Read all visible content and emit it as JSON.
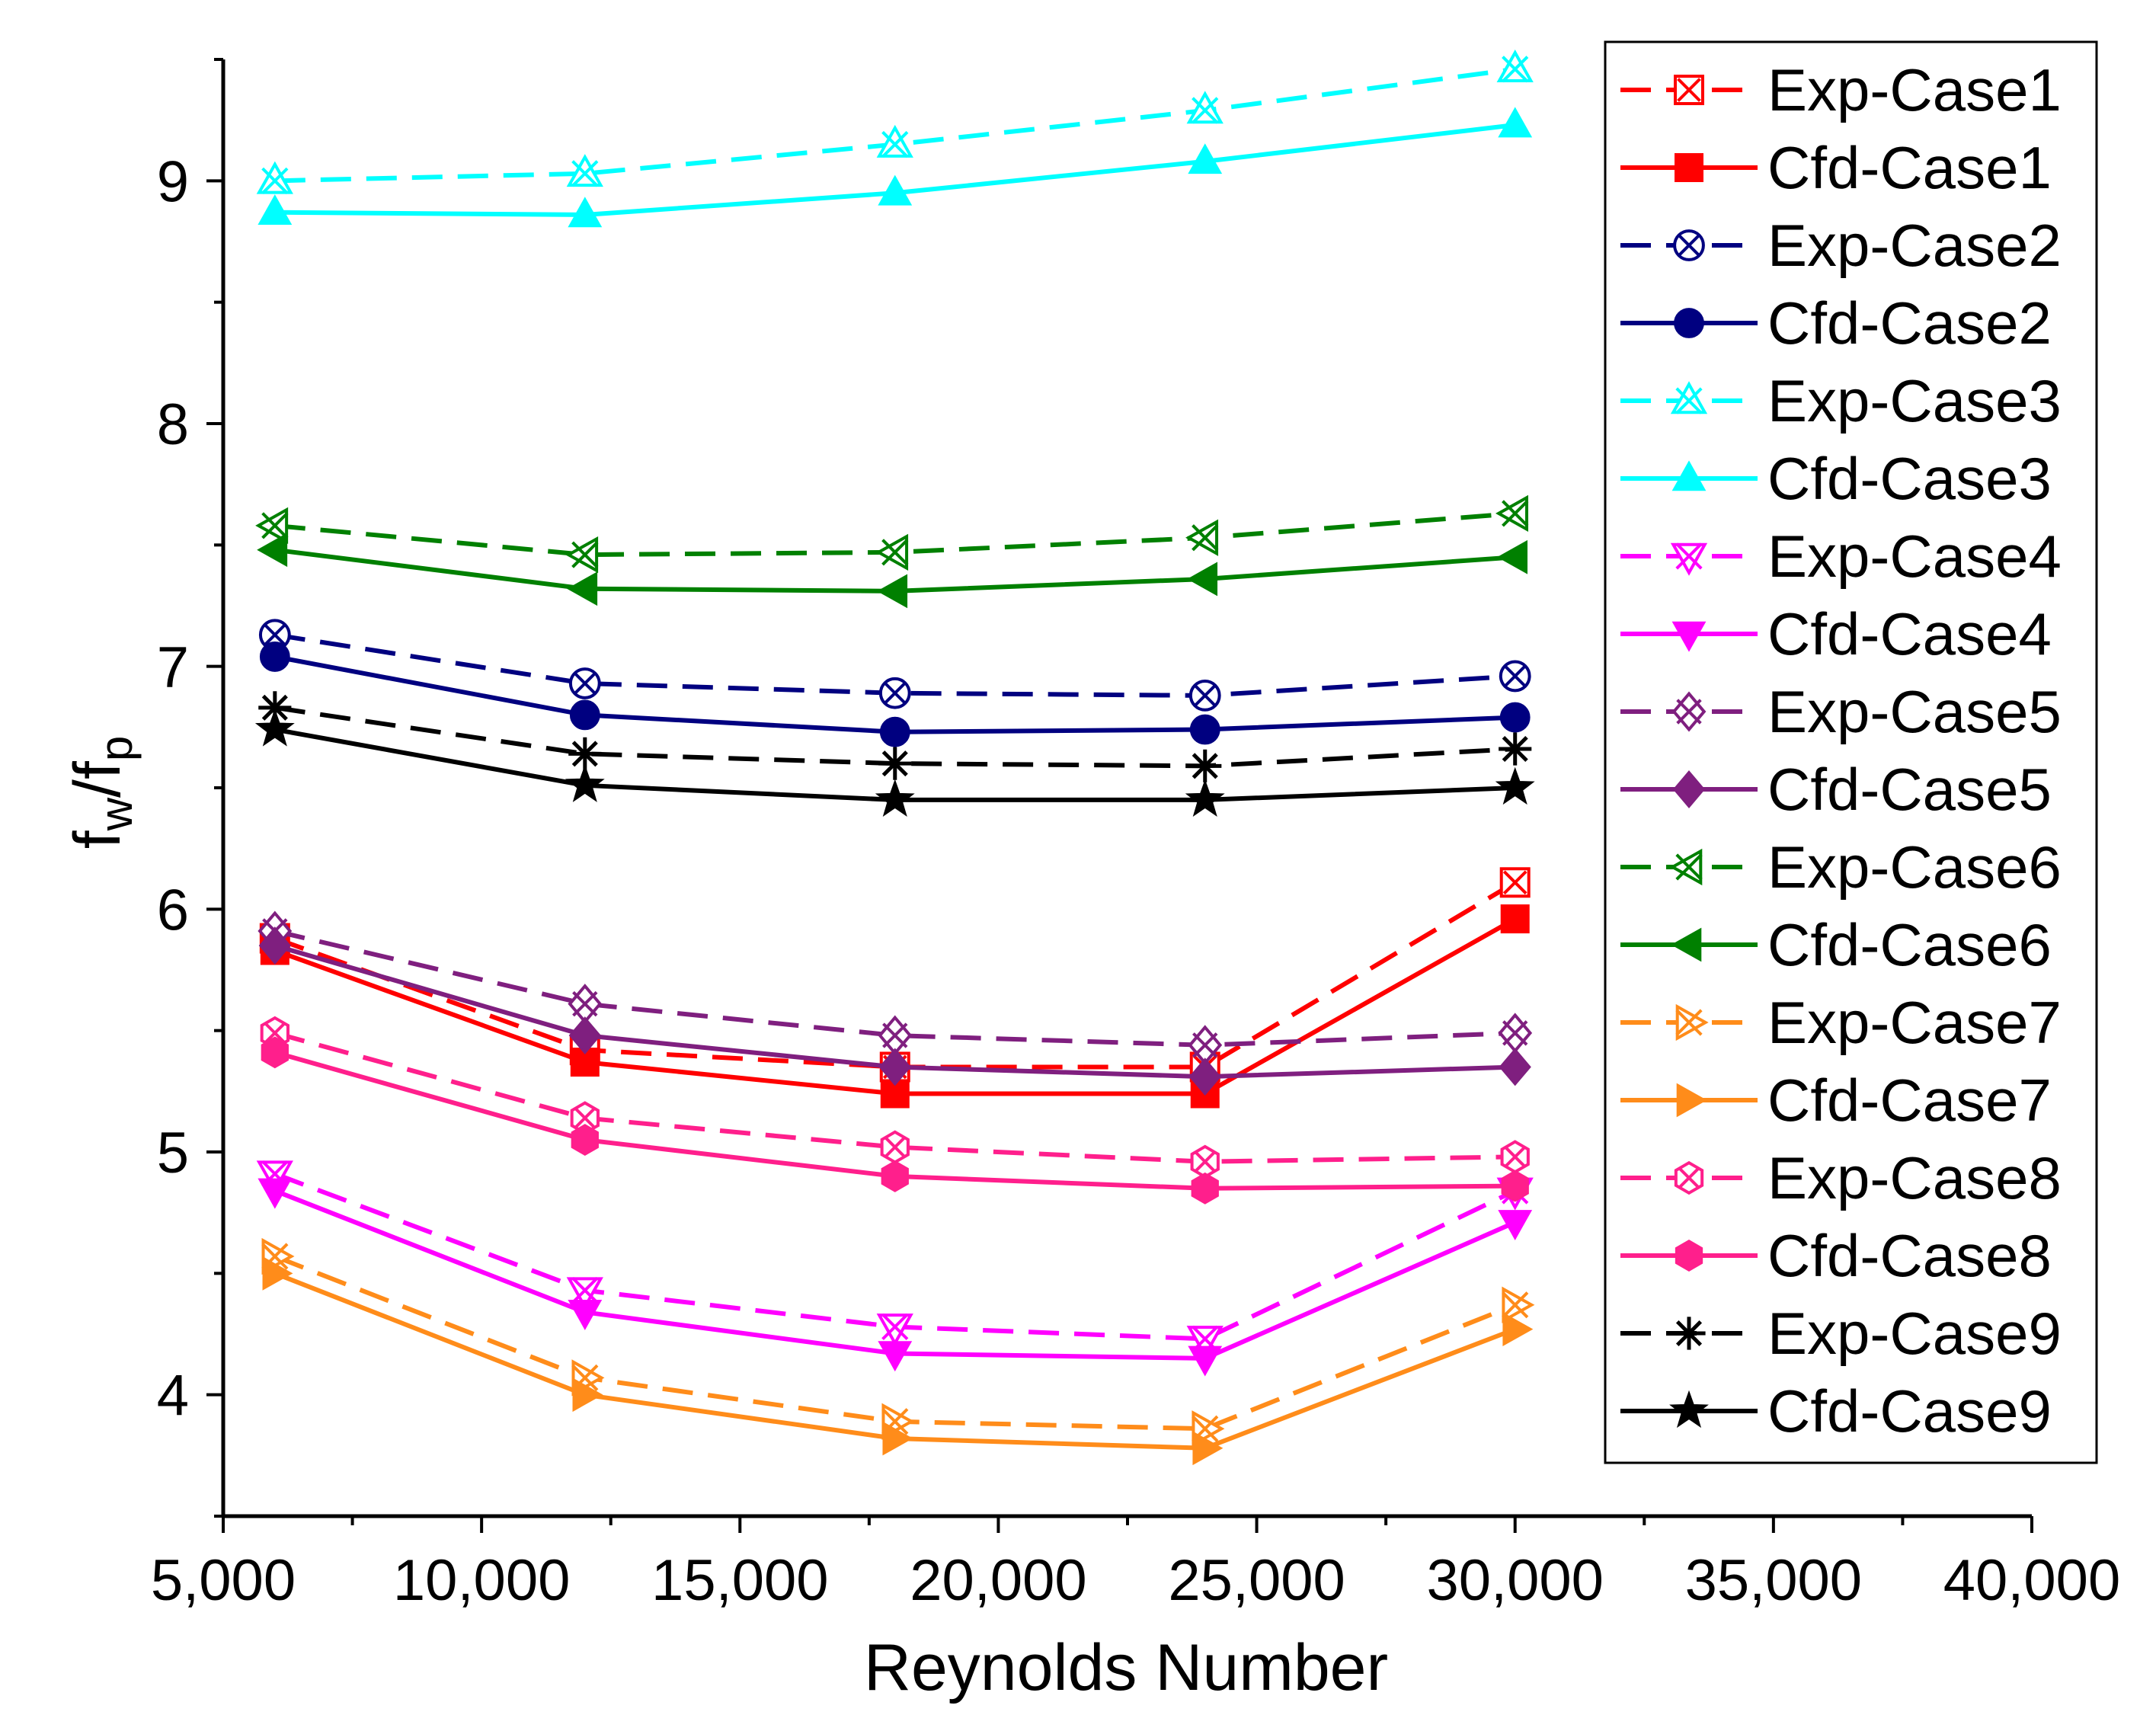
{
  "chart_data": {
    "type": "line",
    "title": "",
    "xlabel": "Reynolds Number",
    "ylabel": {
      "main": "f",
      "main_sub": "w",
      "sep": "/f",
      "sep_sub": "p"
    },
    "xlim": [
      5000,
      40000
    ],
    "ylim": [
      3.5,
      9.5
    ],
    "x_ticks": [
      5000,
      10000,
      15000,
      20000,
      25000,
      30000,
      35000,
      40000
    ],
    "x_tick_labels": [
      "5,000",
      "10,000",
      "15,000",
      "20,000",
      "25,000",
      "30,000",
      "35,000",
      "40,000"
    ],
    "y_ticks": [
      4,
      5,
      6,
      7,
      8,
      9
    ],
    "y_tick_labels": [
      "4",
      "5",
      "6",
      "7",
      "8",
      "9"
    ],
    "x": [
      6000,
      12000,
      18000,
      24000,
      30000
    ],
    "legend_position": "right",
    "series": [
      {
        "name": "Exp-Case1",
        "style": "dashed",
        "marker": "square-x",
        "color": "#ff0000",
        "values": [
          5.88,
          5.42,
          5.35,
          5.35,
          6.11
        ]
      },
      {
        "name": "Cfd-Case1",
        "style": "solid",
        "marker": "square",
        "color": "#ff0000",
        "values": [
          5.83,
          5.37,
          5.24,
          5.24,
          5.96
        ]
      },
      {
        "name": "Exp-Case2",
        "style": "dashed",
        "marker": "circle-x",
        "color": "#000080",
        "values": [
          7.13,
          6.93,
          6.89,
          6.88,
          6.96
        ]
      },
      {
        "name": "Cfd-Case2",
        "style": "solid",
        "marker": "circle",
        "color": "#000080",
        "values": [
          7.04,
          6.8,
          6.73,
          6.74,
          6.79
        ]
      },
      {
        "name": "Exp-Case3",
        "style": "dashed",
        "marker": "triangle-x",
        "color": "#00ffff",
        "values": [
          9.0,
          9.03,
          9.15,
          9.29,
          9.46
        ]
      },
      {
        "name": "Cfd-Case3",
        "style": "solid",
        "marker": "triangle-up",
        "color": "#00ffff",
        "values": [
          8.87,
          8.86,
          8.95,
          9.08,
          9.23
        ]
      },
      {
        "name": "Exp-Case4",
        "style": "dashed",
        "marker": "tridown-x",
        "color": "#ff00ff",
        "values": [
          4.91,
          4.43,
          4.28,
          4.23,
          4.84
        ]
      },
      {
        "name": "Cfd-Case4",
        "style": "solid",
        "marker": "triangle-down",
        "color": "#ff00ff",
        "values": [
          4.84,
          4.34,
          4.17,
          4.15,
          4.71
        ]
      },
      {
        "name": "Exp-Case5",
        "style": "dashed",
        "marker": "diamond-x",
        "color": "#7f1f7f",
        "values": [
          5.91,
          5.61,
          5.48,
          5.44,
          5.49
        ]
      },
      {
        "name": "Cfd-Case5",
        "style": "solid",
        "marker": "diamond",
        "color": "#7f1f7f",
        "values": [
          5.85,
          5.48,
          5.35,
          5.31,
          5.35
        ]
      },
      {
        "name": "Exp-Case6",
        "style": "dashed",
        "marker": "tri-left-x",
        "color": "#008000",
        "values": [
          7.58,
          7.46,
          7.47,
          7.53,
          7.63
        ]
      },
      {
        "name": "Cfd-Case6",
        "style": "solid",
        "marker": "triangle-left",
        "color": "#008000",
        "values": [
          7.48,
          7.32,
          7.31,
          7.36,
          7.45
        ]
      },
      {
        "name": "Exp-Case7",
        "style": "dashed",
        "marker": "tri-right-x",
        "color": "#ff8c1a",
        "values": [
          4.57,
          4.07,
          3.89,
          3.86,
          4.37
        ]
      },
      {
        "name": "Cfd-Case7",
        "style": "solid",
        "marker": "triangle-right",
        "color": "#ff8c1a",
        "values": [
          4.5,
          4.0,
          3.82,
          3.78,
          4.27
        ]
      },
      {
        "name": "Exp-Case8",
        "style": "dashed",
        "marker": "hexagon-x",
        "color": "#ff1f8c",
        "values": [
          5.49,
          5.14,
          5.02,
          4.96,
          4.98
        ]
      },
      {
        "name": "Cfd-Case8",
        "style": "solid",
        "marker": "hexagon",
        "color": "#ff1f8c",
        "values": [
          5.41,
          5.05,
          4.9,
          4.85,
          4.86
        ]
      },
      {
        "name": "Exp-Case9",
        "style": "dashed",
        "marker": "asterisk",
        "color": "#000000",
        "values": [
          6.83,
          6.64,
          6.6,
          6.59,
          6.66
        ]
      },
      {
        "name": "Cfd-Case9",
        "style": "solid",
        "marker": "star",
        "color": "#000000",
        "values": [
          6.74,
          6.51,
          6.45,
          6.45,
          6.5
        ]
      }
    ]
  }
}
